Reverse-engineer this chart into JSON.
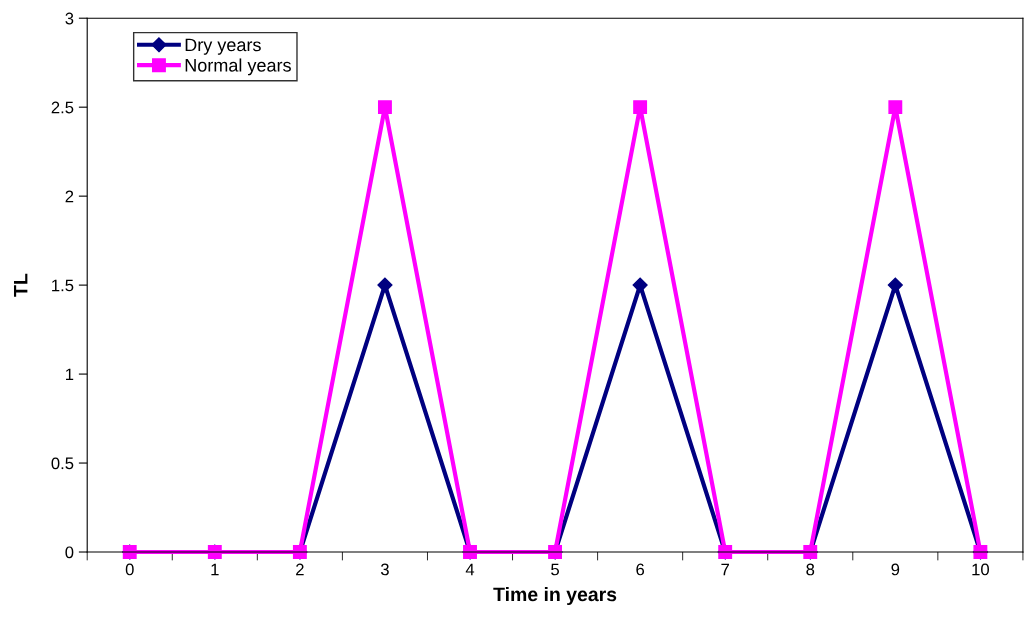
{
  "chart_data": {
    "type": "line",
    "xlabel": "Time in years",
    "ylabel": "TL",
    "categories": [
      "0",
      "1",
      "2",
      "3",
      "4",
      "5",
      "6",
      "7",
      "8",
      "9",
      "10"
    ],
    "series": [
      {
        "name": "Dry years",
        "color": "#000080",
        "marker": "diamond",
        "values": [
          0,
          0,
          0,
          1.5,
          0,
          0,
          1.5,
          0,
          0,
          1.5,
          0
        ]
      },
      {
        "name": "Normal years",
        "color": "#ff00ff",
        "marker": "square",
        "values": [
          0,
          0,
          0,
          2.5,
          0,
          0,
          2.5,
          0,
          0,
          2.5,
          0
        ]
      }
    ],
    "ylim": [
      0,
      3
    ],
    "yticks": [
      0,
      0.5,
      1,
      1.5,
      2,
      2.5,
      3
    ],
    "grid": false,
    "legend": "top left",
    "line_style": "solid"
  }
}
